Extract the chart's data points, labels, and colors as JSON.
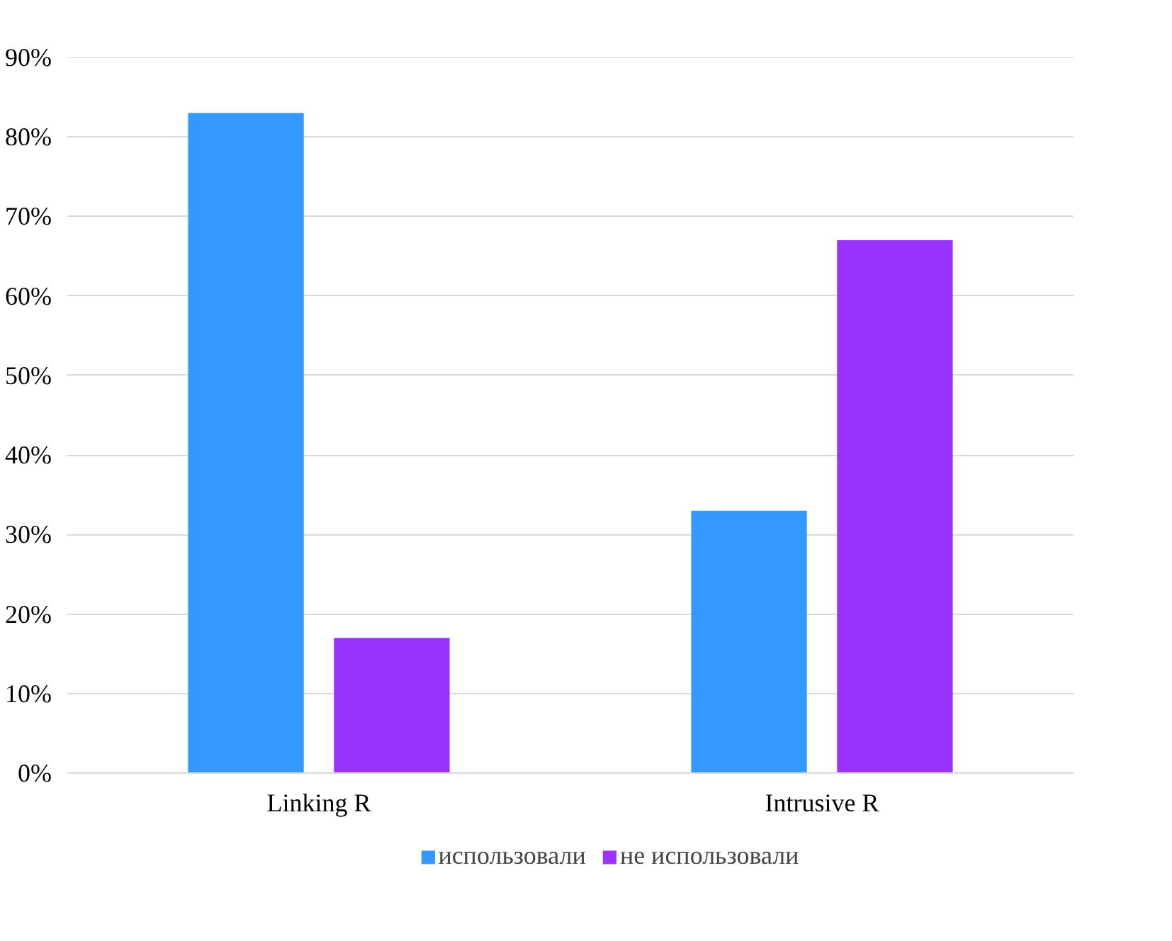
{
  "chart_data": {
    "type": "bar",
    "categories": [
      "Linking R",
      "Intrusive R"
    ],
    "series": [
      {
        "name": "использовали",
        "color": "#3399ff",
        "values": [
          83,
          33
        ]
      },
      {
        "name": "не использовали",
        "color": "#9933ff",
        "values": [
          17,
          67
        ]
      }
    ],
    "ylim": [
      0,
      90
    ],
    "yticks": [
      {
        "value": 0,
        "label": "0%"
      },
      {
        "value": 10,
        "label": "10%"
      },
      {
        "value": 20,
        "label": "20%"
      },
      {
        "value": 30,
        "label": "30%"
      },
      {
        "value": 40,
        "label": "40%"
      },
      {
        "value": 50,
        "label": "50%"
      },
      {
        "value": 60,
        "label": "60%"
      },
      {
        "value": 70,
        "label": "70%"
      },
      {
        "value": 80,
        "label": "80%"
      },
      {
        "value": 90,
        "label": "90%"
      }
    ],
    "grid": "y",
    "legend": "bottom"
  }
}
